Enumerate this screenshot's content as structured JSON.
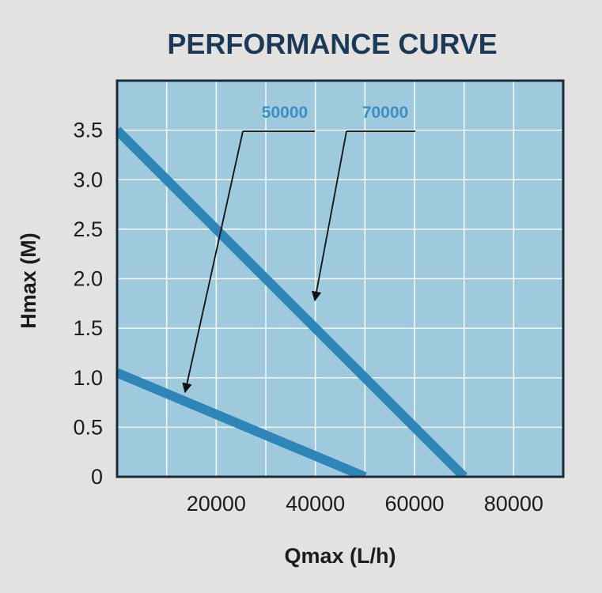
{
  "chart_data": {
    "type": "line",
    "title": "PERFORMANCE CURVE",
    "xlabel": "Qmax (L/h)",
    "ylabel": "Hmax (M)",
    "xlim": [
      0,
      90000
    ],
    "ylim": [
      0,
      4.0
    ],
    "x_ticks": [
      "20000",
      "40000",
      "60000",
      "80000"
    ],
    "x_tick_values": [
      20000,
      40000,
      60000,
      80000
    ],
    "y_ticks": [
      "0",
      "0.5",
      "1.0",
      "1.5",
      "2.0",
      "2.5",
      "3.0",
      "3.5"
    ],
    "y_tick_values": [
      0,
      0.5,
      1.0,
      1.5,
      2.0,
      2.5,
      3.0,
      3.5
    ],
    "grid": true,
    "series": [
      {
        "name": "50000",
        "x": [
          0,
          50000
        ],
        "y": [
          1.05,
          0
        ]
      },
      {
        "name": "70000",
        "x": [
          0,
          70000
        ],
        "y": [
          3.5,
          0
        ]
      }
    ],
    "colors": {
      "plot_bg": "#9fc9dc",
      "grid": "#f2f7f9",
      "frame": "#1a2b3c",
      "line": "#2e86b8",
      "series_label": "#3d8fc2",
      "title": "#1b3a57"
    }
  }
}
